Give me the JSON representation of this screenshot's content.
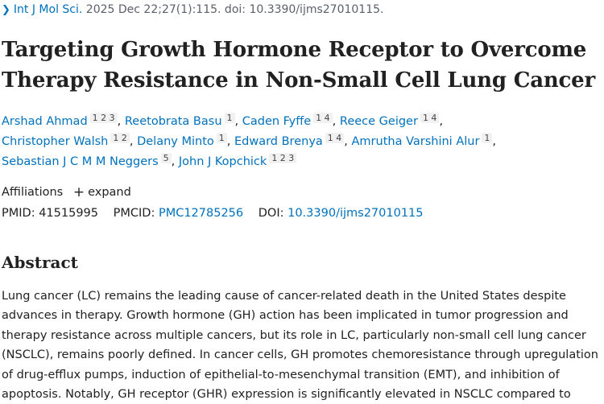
{
  "citation": {
    "journal": "Int J Mol Sci.",
    "details": "2025 Dec 22;27(1):115. doi: 10.3390/ijms27010115."
  },
  "title": "Targeting Growth Hormone Receptor to Overcome Therapy Resistance in Non-Small Cell Lung Cancer",
  "authors": [
    {
      "name": "Arshad Ahmad",
      "affs": "1 2 3"
    },
    {
      "name": "Reetobrata Basu",
      "affs": "1"
    },
    {
      "name": "Caden Fyffe",
      "affs": "1 4"
    },
    {
      "name": "Reece Geiger",
      "affs": "1 4"
    },
    {
      "name": "Christopher Walsh",
      "affs": "1 2"
    },
    {
      "name": "Delany Minto",
      "affs": "1"
    },
    {
      "name": "Edward Brenya",
      "affs": "1 4"
    },
    {
      "name": "Amrutha Varshini Alur",
      "affs": "1"
    },
    {
      "name": "Sebastian J C M M Neggers",
      "affs": "5"
    },
    {
      "name": "John J Kopchick",
      "affs": "1 2 3"
    }
  ],
  "affiliations": {
    "label": "Affiliations",
    "expand_label": "expand"
  },
  "ids": {
    "pmid_label": "PMID:",
    "pmid": "41515995",
    "pmcid_label": "PMCID:",
    "pmcid": "PMC12785256",
    "doi_label": "DOI:",
    "doi": "10.3390/ijms27010115"
  },
  "abstract": {
    "heading": "Abstract",
    "text": "Lung cancer (LC) remains the leading cause of cancer-related death in the United States despite advances in therapy. Growth hormone (GH) action has been implicated in tumor progression and therapy resistance across multiple cancers, but its role in LC, particularly non-small cell lung cancer (NSCLC), remains poorly defined. In cancer cells, GH promotes chemoresistance through upregulation of drug-efflux pumps, induction of epithelial-to-mesenchymal transition (EMT), and inhibition of apoptosis. Notably, GH receptor (GHR) expression is significantly elevated in NSCLC compared to"
  },
  "colors": {
    "link": "#0071bc",
    "text": "#212121"
  }
}
